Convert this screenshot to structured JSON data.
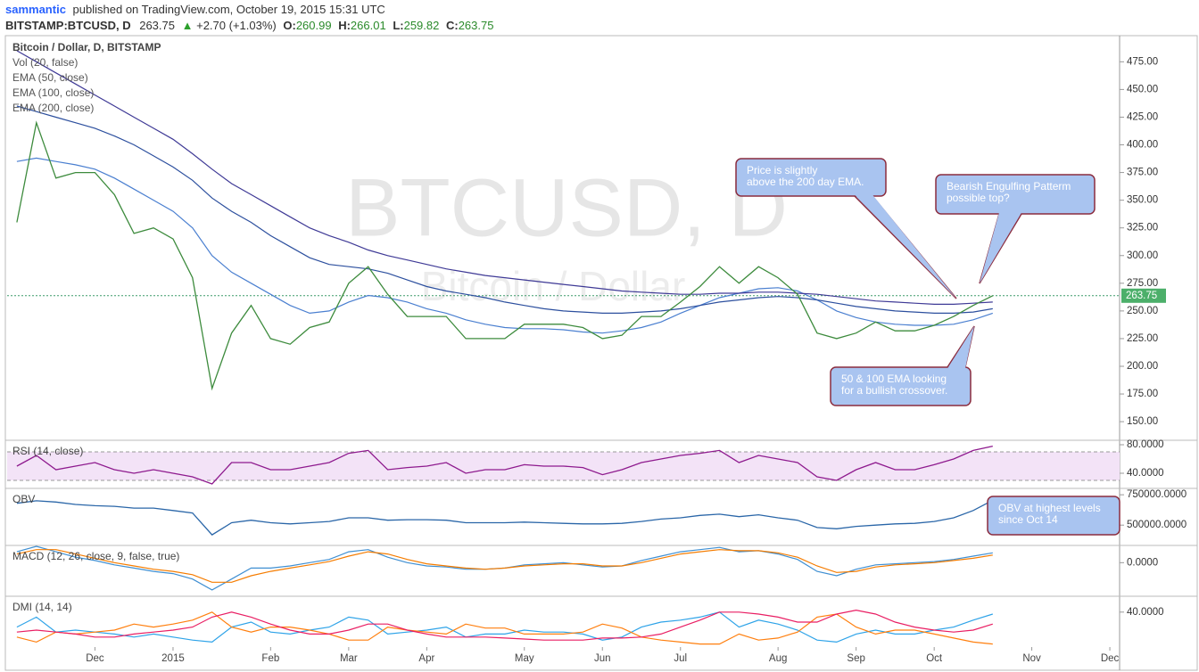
{
  "header": {
    "author": "sammantic",
    "published": "published on TradingView.com, October 19, 2015 15:31 UTC",
    "symbol": "BITSTAMP:BTCUSD, D",
    "price": 263.75,
    "arrow": "▲",
    "change": "+2.70 (+1.03%)",
    "open_label": "O:",
    "open": 260.99,
    "high_label": "H:",
    "high": 266.01,
    "low_label": "L:",
    "low": 259.82,
    "close_label": "C:",
    "close": 263.75
  },
  "chart_data": [
    {
      "type": "line",
      "title": "Bitcoin / Dollar, D, BITSTAMP",
      "volume_label": "Vol (20, false)",
      "watermark": {
        "symbol": "BTCUSD, D",
        "name": "Bitcoin / Dollar"
      },
      "categories": [
        null,
        null,
        null,
        null,
        "Dec",
        null,
        null,
        null,
        "2015",
        null,
        null,
        null,
        null,
        "Feb",
        null,
        null,
        null,
        "Mar",
        null,
        null,
        null,
        "Apr",
        null,
        null,
        null,
        null,
        "May",
        null,
        null,
        null,
        "Jun",
        null,
        null,
        null,
        "Jul",
        null,
        null,
        null,
        null,
        "Aug",
        null,
        null,
        null,
        "Sep",
        null,
        null,
        null,
        "Oct",
        null,
        null,
        null,
        null,
        "Nov",
        null,
        null,
        null,
        "Dec"
      ],
      "values": [
        330,
        420,
        370,
        375,
        375,
        355,
        320,
        325,
        315,
        280,
        180,
        230,
        255,
        225,
        220,
        235,
        240,
        275,
        290,
        265,
        245,
        245,
        245,
        225,
        225,
        225,
        238,
        238,
        238,
        235,
        225,
        228,
        245,
        245,
        258,
        272,
        290,
        275,
        290,
        280,
        265,
        230,
        225,
        230,
        240,
        232,
        232,
        237,
        245,
        255,
        263.75,
        null,
        null,
        null,
        null,
        null,
        null
      ],
      "color": "#3d8b3d",
      "series": [
        {
          "name": "EMA (50, close)",
          "color": "#4a7fd0",
          "values": [
            385,
            388,
            385,
            382,
            378,
            370,
            360,
            350,
            340,
            325,
            300,
            285,
            275,
            265,
            255,
            248,
            250,
            258,
            264,
            262,
            258,
            252,
            248,
            242,
            238,
            235,
            234,
            234,
            233,
            231,
            230,
            232,
            235,
            240,
            248,
            255,
            262,
            266,
            270,
            271,
            268,
            260,
            250,
            244,
            240,
            238,
            237,
            237,
            238,
            242,
            248,
            null,
            null,
            null,
            null,
            null,
            null
          ]
        },
        {
          "name": "EMA (100, close)",
          "color": "#2c4f9e",
          "values": [
            435,
            430,
            425,
            420,
            415,
            408,
            400,
            390,
            380,
            368,
            352,
            340,
            330,
            318,
            308,
            298,
            292,
            290,
            288,
            284,
            278,
            272,
            268,
            265,
            262,
            258,
            255,
            252,
            250,
            249,
            248,
            248,
            249,
            250,
            252,
            255,
            258,
            260,
            262,
            263,
            262,
            260,
            257,
            254,
            252,
            250,
            249,
            248,
            248,
            249,
            252,
            null,
            null,
            null,
            null,
            null,
            null
          ]
        },
        {
          "name": "EMA (200, close)",
          "color": "#3f3a96",
          "values": [
            485,
            475,
            465,
            455,
            445,
            435,
            425,
            415,
            405,
            392,
            378,
            365,
            355,
            345,
            335,
            325,
            318,
            312,
            305,
            300,
            296,
            292,
            288,
            285,
            282,
            280,
            278,
            276,
            274,
            272,
            270,
            268,
            267,
            266,
            265,
            265,
            266,
            266,
            267,
            267,
            266,
            265,
            263,
            261,
            259,
            258,
            257,
            256,
            256,
            257,
            258,
            null,
            null,
            null,
            null,
            null,
            null
          ]
        }
      ],
      "last_price": 263.75,
      "ylim": [
        134,
        497
      ],
      "yticks": [
        {
          "value": 150,
          "label": "150.00"
        },
        {
          "value": 175,
          "label": "175.00"
        },
        {
          "value": 200,
          "label": "200.00"
        },
        {
          "value": 225,
          "label": "225.00"
        },
        {
          "value": 250,
          "label": "250.00"
        },
        {
          "value": 275,
          "label": "275.00"
        },
        {
          "value": 300,
          "label": "300.00"
        },
        {
          "value": 325,
          "label": "325.00"
        },
        {
          "value": 350,
          "label": "350.00"
        },
        {
          "value": 375,
          "label": "375.00"
        },
        {
          "value": 400,
          "label": "400.00"
        },
        {
          "value": 425,
          "label": "425.00"
        },
        {
          "value": 450,
          "label": "450.00"
        },
        {
          "value": 475,
          "label": "475.00"
        }
      ],
      "annotations": [
        {
          "lines": [
            "Price is slightly",
            "above the 200 day EMA."
          ]
        },
        {
          "lines": [
            "Bearish Engulfing Patterm",
            "possible top?"
          ]
        },
        {
          "lines": [
            "50 & 100 EMA looking",
            "for a bullish crossover."
          ]
        }
      ]
    },
    {
      "type": "line",
      "title": "RSI (14, close)",
      "color": "#8e1a8e",
      "band": [
        30,
        70
      ],
      "values": [
        50,
        65,
        45,
        50,
        55,
        45,
        40,
        45,
        40,
        35,
        25,
        55,
        55,
        45,
        45,
        50,
        55,
        68,
        72,
        45,
        48,
        50,
        55,
        40,
        45,
        45,
        52,
        50,
        50,
        48,
        38,
        45,
        55,
        60,
        65,
        68,
        72,
        55,
        65,
        60,
        55,
        35,
        30,
        45,
        55,
        45,
        45,
        52,
        60,
        72,
        78,
        null,
        null,
        null,
        null,
        null,
        null
      ],
      "ylim": [
        20,
        85
      ],
      "yticks": [
        {
          "value": 40,
          "label": "40.0000"
        },
        {
          "value": 80,
          "label": "80.0000"
        }
      ]
    },
    {
      "type": "line",
      "title": "OBV",
      "color": "#2a66a8",
      "values": [
        680000,
        700000,
        690000,
        670000,
        660000,
        655000,
        640000,
        640000,
        620000,
        600000,
        420000,
        520000,
        540000,
        520000,
        510000,
        520000,
        530000,
        560000,
        560000,
        540000,
        545000,
        545000,
        540000,
        520000,
        520000,
        520000,
        525000,
        520000,
        515000,
        510000,
        510000,
        515000,
        530000,
        550000,
        560000,
        580000,
        590000,
        570000,
        585000,
        560000,
        540000,
        480000,
        470000,
        490000,
        500000,
        510000,
        515000,
        530000,
        560000,
        620000,
        705000,
        null,
        null,
        null,
        null,
        null,
        null
      ],
      "ylim": [
        340000,
        795000
      ],
      "yticks": [
        {
          "value": 500000,
          "label": "500000.0000"
        },
        {
          "value": 750000,
          "label": "750000.0000"
        }
      ],
      "annotations": [
        {
          "lines": [
            "OBV at highest levels",
            "since Oct 14"
          ]
        }
      ]
    },
    {
      "type": "line",
      "title": "MACD (12, 26, close, 9, false, true)",
      "series": [
        {
          "color": "#3f8fd2",
          "values": [
            10,
            15,
            10,
            5,
            2,
            -2,
            -5,
            -8,
            -10,
            -15,
            -25,
            -15,
            -5,
            -5,
            -3,
            0,
            3,
            10,
            12,
            5,
            0,
            -3,
            -4,
            -6,
            -6,
            -5,
            -2,
            -1,
            0,
            -2,
            -4,
            -3,
            2,
            6,
            10,
            12,
            14,
            10,
            11,
            8,
            3,
            -8,
            -12,
            -6,
            -2,
            -1,
            0,
            1,
            3,
            6,
            9,
            null,
            null,
            null,
            null,
            null,
            null
          ]
        },
        {
          "color": "#f57c00",
          "values": [
            8,
            12,
            12,
            8,
            4,
            0,
            -3,
            -6,
            -8,
            -11,
            -18,
            -18,
            -12,
            -8,
            -5,
            -2,
            1,
            6,
            10,
            8,
            3,
            -1,
            -3,
            -5,
            -6,
            -5,
            -3,
            -2,
            -1,
            -1,
            -3,
            -3,
            0,
            4,
            8,
            10,
            12,
            11,
            11,
            9,
            5,
            -3,
            -9,
            -8,
            -4,
            -2,
            -1,
            0,
            2,
            4,
            7,
            null,
            null,
            null,
            null,
            null,
            null
          ]
        }
      ],
      "ylim": [
        -30,
        15
      ],
      "yticks": [
        {
          "value": 0,
          "label": "0.0000"
        }
      ]
    },
    {
      "type": "line",
      "title": "DMI (14, 14)",
      "series": [
        {
          "color": "#2ea3e8",
          "values": [
            25,
            35,
            20,
            22,
            20,
            18,
            15,
            18,
            15,
            12,
            10,
            25,
            30,
            20,
            18,
            22,
            25,
            35,
            32,
            18,
            20,
            22,
            25,
            15,
            18,
            18,
            22,
            20,
            20,
            18,
            12,
            15,
            25,
            30,
            32,
            35,
            40,
            25,
            32,
            28,
            22,
            12,
            10,
            18,
            22,
            18,
            18,
            22,
            25,
            32,
            38,
            null,
            null,
            null,
            null,
            null,
            null
          ]
        },
        {
          "color": "#ff7f0e",
          "values": [
            15,
            10,
            20,
            18,
            20,
            22,
            28,
            25,
            28,
            32,
            40,
            25,
            20,
            25,
            25,
            22,
            18,
            12,
            12,
            25,
            22,
            20,
            18,
            28,
            24,
            24,
            18,
            18,
            18,
            20,
            28,
            24,
            15,
            12,
            10,
            8,
            8,
            18,
            12,
            14,
            20,
            35,
            38,
            25,
            18,
            22,
            22,
            18,
            14,
            10,
            8,
            null,
            null,
            null,
            null,
            null,
            null
          ]
        },
        {
          "color": "#e91e63",
          "values": [
            20,
            22,
            20,
            18,
            15,
            15,
            18,
            20,
            22,
            25,
            35,
            40,
            35,
            28,
            22,
            18,
            18,
            22,
            28,
            28,
            22,
            18,
            15,
            15,
            15,
            14,
            13,
            12,
            12,
            12,
            14,
            14,
            15,
            18,
            25,
            32,
            40,
            40,
            38,
            35,
            30,
            30,
            38,
            42,
            38,
            30,
            25,
            22,
            20,
            22,
            28,
            null,
            null,
            null,
            null,
            null,
            null
          ]
        }
      ],
      "ylim": [
        5,
        55
      ],
      "yticks": [
        {
          "value": 40,
          "label": "40.0000"
        }
      ]
    }
  ]
}
